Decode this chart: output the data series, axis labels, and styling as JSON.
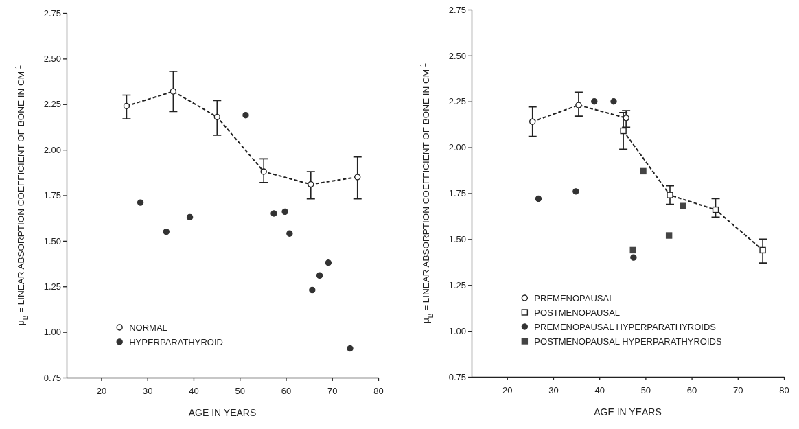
{
  "chart_data": [
    {
      "type": "scatter",
      "xlabel": "AGE IN YEARS",
      "ylabel": "μ$_{B}$ = LINEAR ABSORPTION COEFFICIENT OF BONE IN CM$^{-1}$",
      "xlim": [
        12.5,
        80
      ],
      "xticks": [
        20,
        30,
        40,
        50,
        60,
        70,
        80
      ],
      "ylim": [
        0.75,
        2.75
      ],
      "yticks": [
        {
          "value": 0.75,
          "label": "0.75"
        },
        {
          "value": 1,
          "label": "1.00"
        },
        {
          "value": 1.25,
          "label": "1.25"
        },
        {
          "value": 1.5,
          "label": "1.50"
        },
        {
          "value": 1.75,
          "label": "1.75"
        },
        {
          "value": 2,
          "label": "2.00"
        },
        {
          "value": 2.25,
          "label": "2.25"
        },
        {
          "value": 2.5,
          "label": "2.50"
        },
        {
          "value": 2.75,
          "label": "2.75"
        }
      ],
      "grid": false,
      "legend": "bottom left",
      "series": [
        {
          "name": "NORMAL",
          "type": "line",
          "marker": "circle",
          "line_style": "dashed",
          "color": "#222222",
          "x": [
            25.5,
            35.6,
            45.1,
            55.2,
            65.4,
            75.5
          ],
          "values": [
            2.24,
            2.32,
            2.18,
            1.88,
            1.81,
            1.85
          ],
          "errors": [
            [
              2.17,
              2.3
            ],
            [
              2.21,
              2.43
            ],
            [
              2.08,
              2.27
            ],
            [
              1.82,
              1.95
            ],
            [
              1.73,
              1.88
            ],
            [
              1.73,
              1.96
            ]
          ]
        },
        {
          "name": "HYPERPARATHYROID",
          "type": "scatter",
          "marker": "circle",
          "color": "#333333",
          "x": [
            28.5,
            34.1,
            39.2,
            51.3,
            57.4,
            59.8,
            60.8,
            65.7,
            67.3,
            69.2,
            73.9
          ],
          "values": [
            1.71,
            1.55,
            1.63,
            2.19,
            1.65,
            1.66,
            1.54,
            1.23,
            1.31,
            1.38,
            0.91
          ]
        }
      ]
    },
    {
      "type": "scatter",
      "xlabel": "AGE IN YEARS",
      "ylabel": "μ$_{B}$ = LINEAR ABSORPTION COEFFICIENT OF BONE IN CM$^{-1}$",
      "xlim": [
        12.3,
        80
      ],
      "xticks": [
        20,
        30,
        40,
        50,
        60,
        70,
        80
      ],
      "ylim": [
        0.75,
        2.75
      ],
      "yticks": [
        {
          "value": 0.75,
          "label": "0.75"
        },
        {
          "value": 1,
          "label": "1.00"
        },
        {
          "value": 1.25,
          "label": "1.25"
        },
        {
          "value": 1.5,
          "label": "1.50"
        },
        {
          "value": 1.75,
          "label": "1.75"
        },
        {
          "value": 2,
          "label": "2.00"
        },
        {
          "value": 2.25,
          "label": "2.25"
        },
        {
          "value": 2.5,
          "label": "2.50"
        },
        {
          "value": 2.75,
          "label": "2.75"
        }
      ],
      "grid": false,
      "legend": "bottom left",
      "series": [
        {
          "name": "PREMENOPAUSAL",
          "type": "line",
          "marker": "circle",
          "line_style": "dashed",
          "color": "#222222",
          "x": [
            25.5,
            35.5,
            45.8
          ],
          "values": [
            2.14,
            2.23,
            2.16
          ],
          "errors": [
            [
              2.06,
              2.22
            ],
            [
              2.17,
              2.3
            ],
            [
              2.11,
              2.2
            ]
          ]
        },
        {
          "name": "POSTMENOPAUSAL",
          "type": "line",
          "marker": "square",
          "line_style": "dashed",
          "color": "#222222",
          "x": [
            45.2,
            55.3,
            65.2,
            75.4
          ],
          "values": [
            2.09,
            1.74,
            1.66,
            1.44
          ],
          "errors": [
            [
              1.99,
              2.19
            ],
            [
              1.69,
              1.79
            ],
            [
              1.62,
              1.72
            ],
            [
              1.37,
              1.5
            ]
          ]
        },
        {
          "name": "PREMENOPAUSAL HYPERPARATHYROIDS",
          "type": "scatter",
          "marker": "circle",
          "color": "#333333",
          "x": [
            26.8,
            34.9,
            38.9,
            43.1,
            47.4
          ],
          "values": [
            1.72,
            1.76,
            2.25,
            2.25,
            1.4
          ]
        },
        {
          "name": "POSTMENOPAUSAL HYPERPARATHYROIDS",
          "type": "scatter",
          "marker": "square",
          "color": "#444444",
          "x": [
            47.3,
            49.5,
            55.1,
            58.1
          ],
          "values": [
            1.44,
            1.87,
            1.52,
            1.68
          ]
        }
      ]
    }
  ]
}
